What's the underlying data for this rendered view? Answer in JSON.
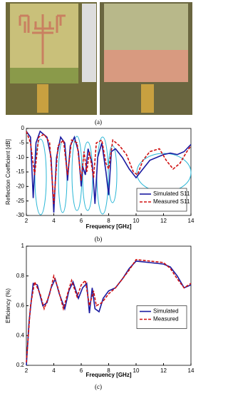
{
  "photo_caption": "(a)",
  "chart_data": [
    {
      "type": "line",
      "caption": "(b)",
      "x_label": "Frequency [GHz]",
      "y_label": "Reflection Coefficient [dB]",
      "xlim": [
        2,
        14
      ],
      "xticks": [
        2,
        4,
        6,
        8,
        10,
        12,
        14
      ],
      "ylim": [
        -30,
        0
      ],
      "yticks": [
        0,
        -5,
        -10,
        -15,
        -20,
        -25,
        -30
      ],
      "legend": "lower right",
      "series": [
        {
          "name": "Simulated S11",
          "color": "#1a1aa0",
          "dash": false,
          "x": [
            2,
            2.3,
            2.5,
            2.7,
            3,
            3.5,
            3.8,
            4,
            4.2,
            4.5,
            4.8,
            5,
            5.2,
            5.5,
            5.8,
            6,
            6.1,
            6.3,
            6.5,
            6.8,
            7,
            7.2,
            7.5,
            7.8,
            8,
            8.2,
            8.5,
            9,
            9.5,
            10,
            10.5,
            11,
            12,
            12.5,
            13,
            13.5,
            14
          ],
          "values": [
            -1,
            -3,
            -24,
            -5,
            -1,
            -3,
            -10,
            -29,
            -10,
            -3,
            -5,
            -18,
            -6,
            -3,
            -8,
            -20,
            -13,
            -16,
            -7,
            -12,
            -26,
            -10,
            -5,
            -15,
            -23,
            -8,
            -7,
            -10,
            -14,
            -17,
            -14,
            -11,
            -9,
            -8.5,
            -9,
            -8,
            -5.5
          ]
        },
        {
          "name": "Measured S11",
          "color": "#d01010",
          "dash": true,
          "x": [
            2,
            2.3,
            2.6,
            2.9,
            3.3,
            3.7,
            4,
            4.3,
            4.7,
            5,
            5.3,
            5.7,
            6,
            6.2,
            6.4,
            6.6,
            6.9,
            7.1,
            7.5,
            7.8,
            8,
            8.3,
            8.8,
            9.3,
            9.8,
            10.1,
            10.5,
            11,
            11.7,
            12.2,
            12.7,
            13.2,
            13.7,
            14
          ],
          "values": [
            -1,
            -5,
            -16,
            -3,
            -2,
            -5,
            -26,
            -6,
            -4,
            -16,
            -4,
            -5,
            -18,
            -8,
            -15,
            -8,
            -17,
            -5,
            -4,
            -12,
            -14,
            -4,
            -6,
            -9,
            -15,
            -16,
            -11,
            -8,
            -7,
            -11,
            -14,
            -12,
            -8,
            -6
          ]
        }
      ]
    },
    {
      "type": "line",
      "caption": "(c)",
      "x_label": "Frequency [GHz]",
      "y_label": "Efficiency (%)",
      "xlim": [
        2,
        14
      ],
      "xticks": [
        2,
        4,
        6,
        8,
        10,
        12,
        14
      ],
      "ylim": [
        0.2,
        1
      ],
      "yticks": [
        0.2,
        0.4,
        0.6,
        0.8,
        1
      ],
      "legend": "center right",
      "series": [
        {
          "name": "Simulated",
          "color": "#1a1aa0",
          "dash": false,
          "x": [
            2,
            2.2,
            2.5,
            2.8,
            3.2,
            3.5,
            3.8,
            4.1,
            4.4,
            4.8,
            5.1,
            5.4,
            5.8,
            6.1,
            6.4,
            6.6,
            6.8,
            7,
            7.3,
            7.6,
            8,
            8.5,
            9,
            9.5,
            10,
            11,
            12,
            12.5,
            13,
            13.5,
            14
          ],
          "values": [
            0.2,
            0.5,
            0.75,
            0.74,
            0.6,
            0.62,
            0.72,
            0.78,
            0.68,
            0.58,
            0.7,
            0.76,
            0.65,
            0.72,
            0.75,
            0.55,
            0.72,
            0.58,
            0.56,
            0.65,
            0.7,
            0.72,
            0.78,
            0.85,
            0.9,
            0.89,
            0.88,
            0.86,
            0.8,
            0.72,
            0.74
          ]
        },
        {
          "name": "Measured",
          "color": "#d01010",
          "dash": true,
          "x": [
            2,
            2.3,
            2.6,
            3,
            3.3,
            3.7,
            4,
            4.3,
            4.7,
            5,
            5.3,
            5.7,
            6,
            6.3,
            6.6,
            6.9,
            7.1,
            7.5,
            8,
            8.5,
            9,
            9.5,
            10,
            11,
            12,
            12.5,
            13,
            13.5,
            14
          ],
          "values": [
            0.22,
            0.6,
            0.76,
            0.68,
            0.58,
            0.68,
            0.8,
            0.72,
            0.58,
            0.68,
            0.77,
            0.66,
            0.74,
            0.77,
            0.6,
            0.7,
            0.6,
            0.62,
            0.68,
            0.72,
            0.78,
            0.84,
            0.91,
            0.9,
            0.89,
            0.85,
            0.78,
            0.72,
            0.75
          ]
        }
      ]
    }
  ]
}
